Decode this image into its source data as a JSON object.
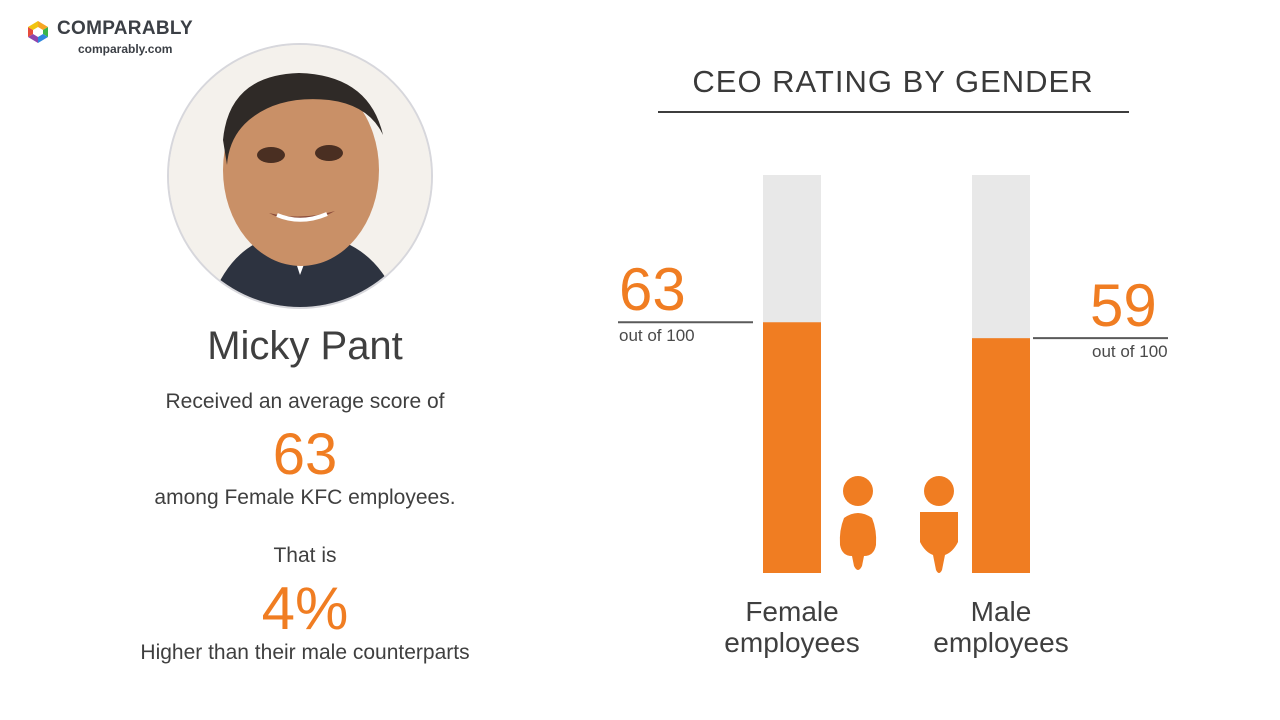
{
  "brand": {
    "name": "COMPARABLY",
    "url": "comparably.com"
  },
  "ceo": {
    "name": "Micky Pant"
  },
  "summary": {
    "line1": "Received an average score of",
    "score": "63",
    "line2": "among Female KFC employees.",
    "line3": "That is",
    "percent": "4%",
    "line4": "Higher than their male counterparts"
  },
  "chart_data": {
    "type": "bar",
    "title": "CEO RATING BY GENDER",
    "categories": [
      "Female\nemployees",
      "Male\nemployees"
    ],
    "values": [
      63,
      59
    ],
    "ylim": [
      0,
      100
    ],
    "value_labels": [
      "63",
      "59"
    ],
    "unit_note": "out of 100",
    "colors": {
      "filled": "#f07d22",
      "track": "#e8e8e8"
    }
  }
}
